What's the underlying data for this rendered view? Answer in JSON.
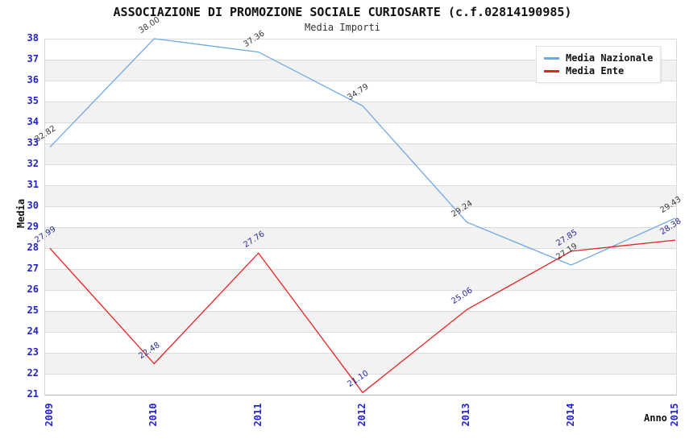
{
  "header": {
    "title": "ASSOCIAZIONE DI PROMOZIONE SOCIALE CURIOSARTE (c.f.02814190985)",
    "subtitle": "Media Importi"
  },
  "chart_data": {
    "type": "line",
    "x": [
      "2009",
      "2010",
      "2011",
      "2012",
      "2013",
      "2014",
      "2015"
    ],
    "xlabel": "Anno",
    "ylabel": "Media",
    "ylim": [
      21,
      38
    ],
    "ytick_step": 1,
    "grid": "horizontal gridlines each integer, alternating white / light-gray row bands",
    "legend_position": "top-right inside plot, white box",
    "axis_tick_color": "#2323cc",
    "series": [
      {
        "name": "Media Nazionale",
        "color": "#6fa8e0",
        "label_color": "#3a3a3a",
        "values": [
          32.82,
          38.0,
          37.36,
          34.79,
          29.24,
          27.19,
          29.43
        ],
        "point_labels": [
          "32.82",
          "38.00",
          "37.36",
          "34.79",
          "29.24",
          "27.19",
          "29.43"
        ]
      },
      {
        "name": "Media Ente",
        "color": "#e62222",
        "label_color": "#2b2b9e",
        "values": [
          27.99,
          22.48,
          27.76,
          21.1,
          25.06,
          27.85,
          28.38
        ],
        "point_labels": [
          "27.99",
          "22.48",
          "27.76",
          "21.10",
          "25.06",
          "27.85",
          "28.38"
        ]
      }
    ]
  }
}
